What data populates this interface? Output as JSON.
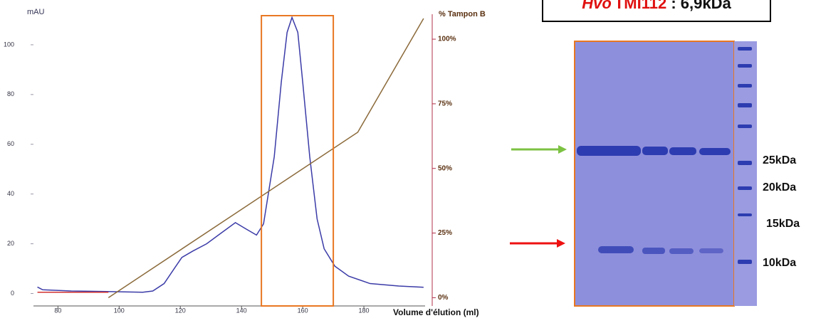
{
  "chart_data": {
    "type": "line",
    "y_label": "mAU",
    "y2_label": "% Tampon B",
    "x_label": "Volume d'élution (ml)",
    "xlim": [
      72,
      200
    ],
    "xticks": [
      80,
      100,
      120,
      140,
      160,
      180
    ],
    "ylim": [
      -5,
      114
    ],
    "yticks": [
      0,
      20,
      40,
      60,
      80,
      100
    ],
    "y2lim": [
      -3.2,
      111.3
    ],
    "y2ticks": [
      {
        "value": 0,
        "label": "0%"
      },
      {
        "value": 25,
        "label": "25%"
      },
      {
        "value": 50,
        "label": "50%"
      },
      {
        "value": 75,
        "label": "75%"
      },
      {
        "value": 100,
        "label": "100%"
      }
    ],
    "highlight_x": [
      146.5,
      170
    ],
    "highlight_color": "#e87722",
    "series": [
      {
        "color": "#3b3ba8",
        "axis": "y",
        "x": [
          73.3,
          75,
          84.4,
          96,
          107.7,
          111,
          114.7,
          118,
          120.5,
          124,
          128.6,
          133,
          138,
          141.4,
          144.9,
          147.2,
          150.7,
          153,
          154.9,
          156.5,
          158.4,
          160,
          162.3,
          164.7,
          167,
          170.5,
          175,
          182,
          191.4,
          199.5
        ],
        "values": [
          2.6,
          1.5,
          1,
          0.8,
          0.5,
          1,
          4,
          10,
          14.5,
          17,
          20,
          24,
          28.5,
          26,
          23.5,
          28,
          55,
          85,
          105,
          111,
          105,
          85,
          55,
          30,
          18,
          11,
          7,
          4,
          3,
          2.5
        ]
      },
      {
        "color": "#8b6a3a",
        "axis": "y2",
        "x": [
          96.5,
          178,
          199.5
        ],
        "values": [
          0,
          64,
          108
        ]
      },
      {
        "color": "#d03030",
        "axis": "y",
        "x": [
          73.3,
          96.5
        ],
        "values": [
          0.5,
          0.5
        ]
      }
    ]
  },
  "gel": {
    "title_italic": "Hvo",
    "title_name": "TMI112",
    "title_rest": " : 6,9kDa",
    "markers": [
      "25kDa",
      "20kDa",
      "15kDa",
      "10kDa"
    ]
  }
}
